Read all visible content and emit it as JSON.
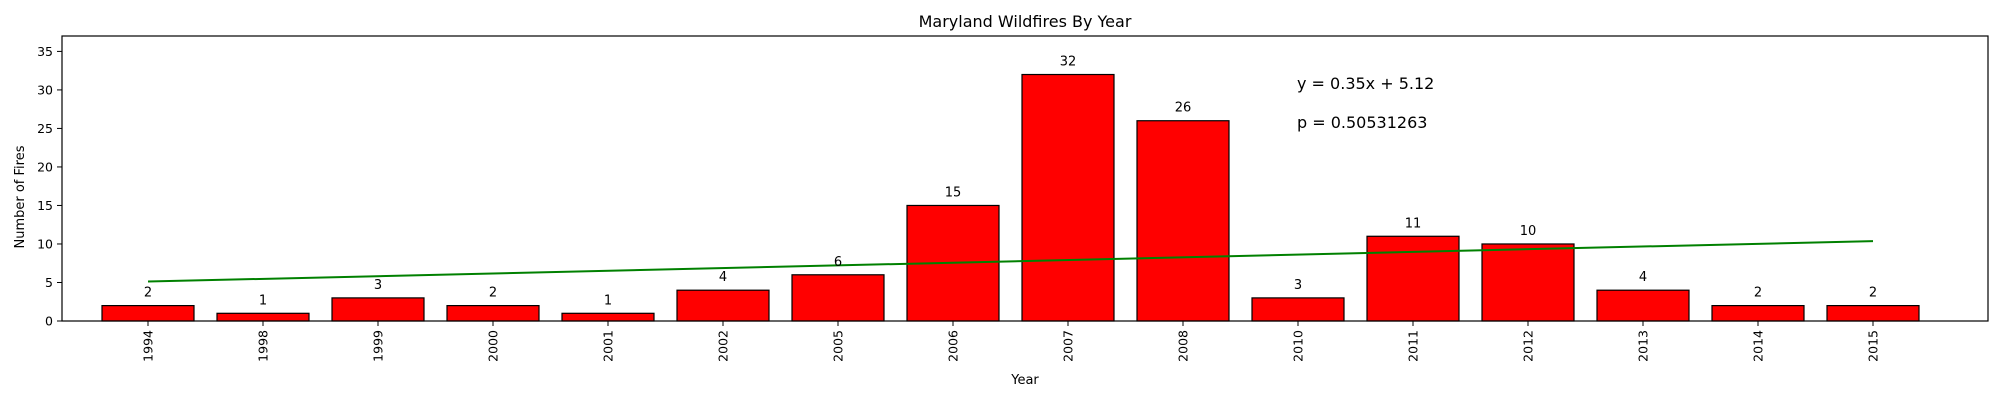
{
  "chart_data": {
    "type": "bar",
    "title": "Maryland Wildfires By Year",
    "xlabel": "Year",
    "ylabel": "Number of Fires",
    "categories": [
      "1994",
      "1998",
      "1999",
      "2000",
      "2001",
      "2002",
      "2005",
      "2006",
      "2007",
      "2008",
      "2010",
      "2011",
      "2012",
      "2013",
      "2014",
      "2015"
    ],
    "values": [
      2,
      1,
      3,
      2,
      1,
      4,
      6,
      15,
      32,
      26,
      3,
      11,
      10,
      4,
      2,
      2
    ],
    "ylim": [
      0,
      37
    ],
    "yticks": [
      0,
      5,
      10,
      15,
      20,
      25,
      30,
      35
    ],
    "grid": false,
    "bar_color": "#ff0000",
    "bar_edge_color": "#000000",
    "trendline": {
      "slope": 0.35,
      "intercept": 5.12,
      "color": "#008000"
    },
    "annotations": [
      {
        "text": "y = 0.35x + 5.12",
        "color": "#008000"
      },
      {
        "text": "p = 0.50531263",
        "color": "#0000ff"
      }
    ]
  }
}
